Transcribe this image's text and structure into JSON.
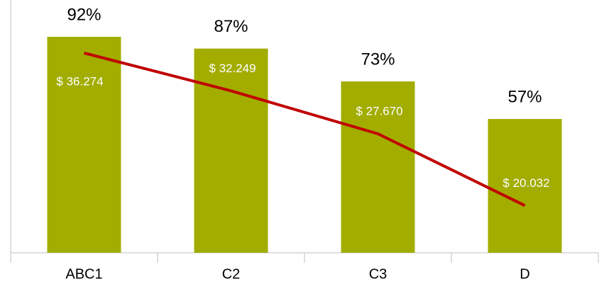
{
  "chart_data": {
    "type": "bar-line",
    "categories": [
      "ABC1",
      "C2",
      "C3",
      "D"
    ],
    "ylim": [
      0,
      100
    ],
    "y2lim": [
      15000,
      40000
    ],
    "series": [
      {
        "type": "bar",
        "color": "#a2ad00",
        "values": [
          92,
          87,
          73,
          57
        ],
        "value_labels": [
          "92%",
          "87%",
          "73%",
          "57%"
        ]
      },
      {
        "type": "line",
        "axis": "y2",
        "color": "#c00000",
        "values": [
          36274,
          32249,
          27670,
          20032
        ],
        "value_labels": [
          "$ 36.274",
          "$ 32.249",
          "$ 27.670",
          "$ 20.032"
        ]
      }
    ]
  }
}
